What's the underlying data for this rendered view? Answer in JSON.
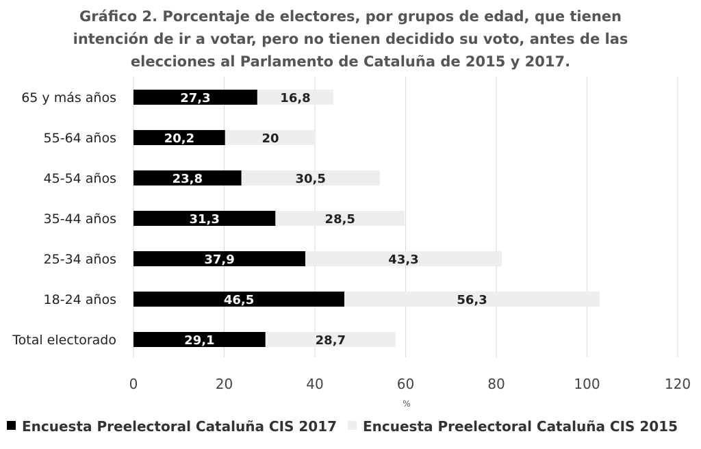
{
  "chart_data": {
    "type": "bar",
    "orientation": "horizontal",
    "stacked": true,
    "title_lines": [
      "Gráfico 2. Porcentaje de electores, por grupos de edad, que tienen",
      "intención de ir a votar, pero no tienen decidido su voto, antes de las",
      "elecciones al Parlamento de Cataluña de 2015 y 2017."
    ],
    "categories": [
      "65 y más años",
      "55-64 años",
      "45-54 años",
      "35-44 años",
      "25-34 años",
      "18-24 años",
      "Total electorado"
    ],
    "series": [
      {
        "name": "Encuesta Preelectoral Cataluña CIS 2017",
        "color": "#000000",
        "label_color": "#ffffff",
        "values": [
          27.3,
          20.2,
          23.8,
          31.3,
          37.9,
          46.5,
          29.1
        ],
        "labels": [
          "27,3",
          "20,2",
          "23,8",
          "31,3",
          "37,9",
          "46,5",
          "29,1"
        ]
      },
      {
        "name": "Encuesta Preelectoral Cataluña CIS 2015",
        "color": "#eeeeee",
        "label_color": "#222222",
        "values": [
          16.8,
          20,
          30.5,
          28.5,
          43.3,
          56.3,
          28.7
        ],
        "labels": [
          "16,8",
          "20",
          "30,5",
          "28,5",
          "43,3",
          "56,3",
          "28,7"
        ]
      }
    ],
    "xlabel": "%",
    "xlim": [
      0,
      120
    ],
    "xticks": [
      0,
      20,
      40,
      60,
      80,
      100,
      120
    ],
    "xtick_labels": [
      "0",
      "20",
      "40",
      "60",
      "80",
      "100",
      "120"
    ],
    "grid": true,
    "legend_position": "bottom"
  }
}
